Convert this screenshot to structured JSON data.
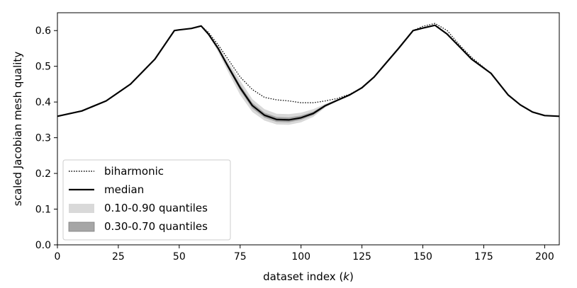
{
  "chart_data": {
    "type": "line",
    "xlabel_text": "dataset index (",
    "xlabel_var": "k",
    "xlabel_close": ")",
    "ylabel": "scaled Jacobian mesh quality",
    "xlim": [
      0,
      206
    ],
    "ylim": [
      0.0,
      0.65
    ],
    "xticks": [
      0,
      25,
      50,
      75,
      100,
      125,
      150,
      175,
      200
    ],
    "xtick_labels": [
      "0",
      "25",
      "50",
      "75",
      "100",
      "125",
      "150",
      "175",
      "200"
    ],
    "yticks": [
      0.0,
      0.1,
      0.2,
      0.3,
      0.4,
      0.5,
      0.6
    ],
    "ytick_labels": [
      "0.0",
      "0.1",
      "0.2",
      "0.3",
      "0.4",
      "0.5",
      "0.6"
    ],
    "grid": false,
    "legend_position": "lower-left",
    "legend": {
      "biharmonic": "biharmonic",
      "median": "median",
      "q10_90": "0.10-0.90 quantiles",
      "q30_70": "0.30-0.70 quantiles"
    },
    "colors": {
      "line": "#000000",
      "band_outer": "#d9d9d9",
      "band_inner": "#a6a6a6"
    },
    "series": [
      {
        "name": "biharmonic",
        "style": "dotted",
        "x": [
          0,
          10,
          20,
          30,
          40,
          48,
          50,
          55,
          59,
          62,
          66,
          70,
          75,
          80,
          85,
          90,
          95,
          100,
          105,
          110,
          115,
          120,
          125,
          130,
          135,
          140,
          146,
          150,
          155,
          160,
          165,
          170,
          178,
          185,
          190,
          195,
          200,
          206
        ],
        "y": [
          0.36,
          0.375,
          0.403,
          0.45,
          0.52,
          0.6,
          0.602,
          0.606,
          0.613,
          0.595,
          0.56,
          0.52,
          0.47,
          0.435,
          0.413,
          0.406,
          0.403,
          0.398,
          0.398,
          0.403,
          0.41,
          0.422,
          0.44,
          0.47,
          0.51,
          0.55,
          0.6,
          0.612,
          0.62,
          0.6,
          0.56,
          0.525,
          0.48,
          0.42,
          0.392,
          0.372,
          0.362,
          0.36
        ]
      },
      {
        "name": "median",
        "style": "solid",
        "x": [
          0,
          10,
          20,
          30,
          40,
          48,
          50,
          55,
          59,
          62,
          66,
          70,
          75,
          80,
          85,
          90,
          95,
          100,
          105,
          110,
          115,
          120,
          125,
          130,
          135,
          140,
          146,
          150,
          155,
          160,
          165,
          170,
          178,
          185,
          190,
          195,
          200,
          206
        ],
        "y": [
          0.36,
          0.375,
          0.403,
          0.45,
          0.52,
          0.6,
          0.602,
          0.606,
          0.613,
          0.59,
          0.55,
          0.5,
          0.44,
          0.39,
          0.363,
          0.351,
          0.35,
          0.356,
          0.368,
          0.39,
          0.405,
          0.42,
          0.44,
          0.47,
          0.51,
          0.55,
          0.6,
          0.607,
          0.615,
          0.59,
          0.555,
          0.52,
          0.48,
          0.42,
          0.392,
          0.372,
          0.362,
          0.36
        ]
      }
    ],
    "bands": [
      {
        "name": "0.10-0.90 quantiles",
        "x": [
          62,
          66,
          70,
          75,
          80,
          85,
          90,
          95,
          100,
          105,
          110,
          115,
          120
        ],
        "lower": [
          0.588,
          0.54,
          0.485,
          0.42,
          0.372,
          0.348,
          0.337,
          0.336,
          0.343,
          0.358,
          0.385,
          0.403,
          0.42
        ],
        "upper": [
          0.592,
          0.558,
          0.513,
          0.46,
          0.408,
          0.38,
          0.367,
          0.366,
          0.37,
          0.38,
          0.395,
          0.408,
          0.42
        ]
      },
      {
        "name": "0.30-0.70 quantiles",
        "x": [
          62,
          66,
          70,
          75,
          80,
          85,
          90,
          95,
          100,
          105,
          110,
          115,
          120
        ],
        "lower": [
          0.589,
          0.546,
          0.494,
          0.432,
          0.382,
          0.356,
          0.344,
          0.343,
          0.35,
          0.363,
          0.387,
          0.404,
          0.42
        ],
        "upper": [
          0.591,
          0.553,
          0.506,
          0.448,
          0.398,
          0.37,
          0.358,
          0.357,
          0.362,
          0.373,
          0.393,
          0.406,
          0.42
        ]
      }
    ]
  }
}
